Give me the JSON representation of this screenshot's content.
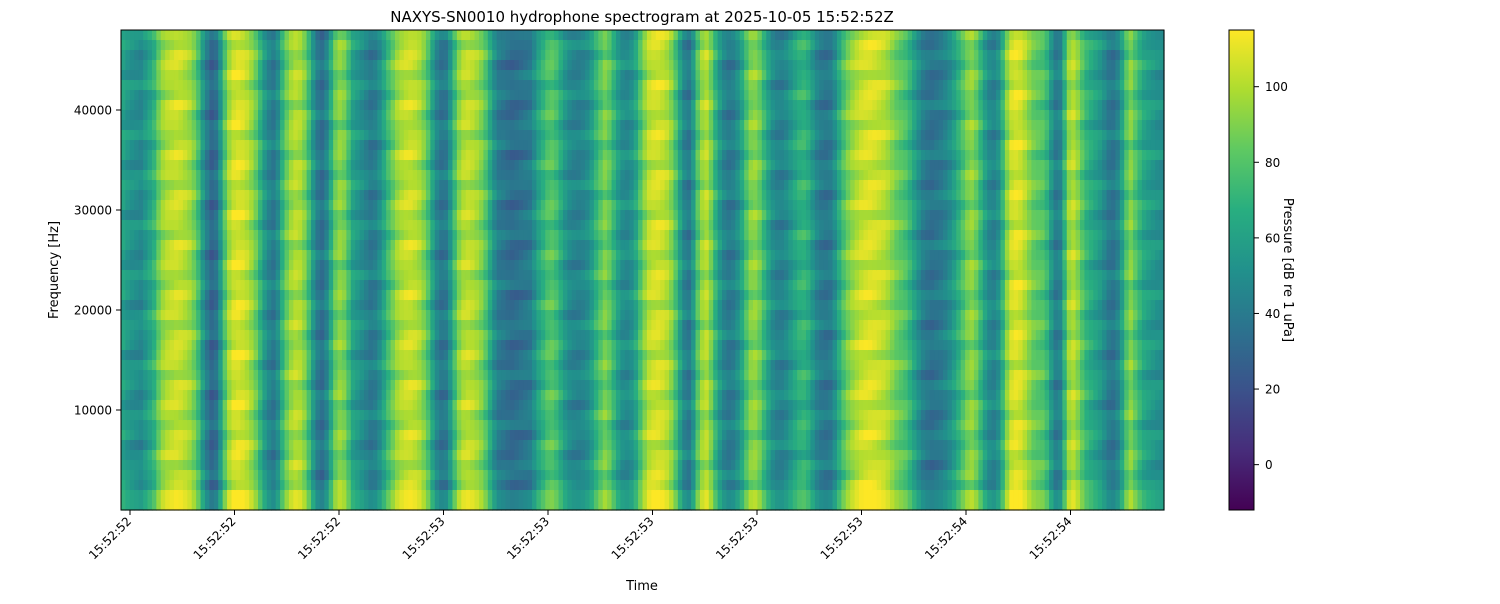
{
  "chart_data": {
    "type": "heatmap",
    "title": "NAXYS-SN0010 hydrophone spectrogram at 2025-10-05 15:52:52Z",
    "xlabel": "Time",
    "ylabel": "Frequency [Hz]",
    "colorbar_label": "Pressure [dB re 1 uPa]",
    "colormap": "viridis",
    "ylim": [
      0,
      48000
    ],
    "clim": [
      -12,
      115
    ],
    "x_tick_labels": [
      "15:52:52",
      "15:52:52",
      "15:52:52",
      "15:52:53",
      "15:52:53",
      "15:52:53",
      "15:52:53",
      "15:52:53",
      "15:52:54",
      "15:52:54"
    ],
    "y_ticks": [
      10000,
      20000,
      30000,
      40000
    ],
    "colorbar_ticks": [
      0,
      20,
      40,
      60,
      80,
      100
    ],
    "column_levels": [
      60,
      55,
      52,
      50,
      48,
      55,
      62,
      70,
      85,
      95,
      100,
      102,
      104,
      103,
      100,
      96,
      88,
      75,
      55,
      40,
      30,
      35,
      55,
      80,
      98,
      106,
      108,
      106,
      102,
      95,
      85,
      70,
      55,
      45,
      40,
      50,
      70,
      85,
      95,
      100,
      98,
      90,
      75,
      55,
      40,
      35,
      45,
      65,
      85,
      92,
      88,
      75,
      60,
      55,
      50,
      45,
      40,
      42,
      50,
      62,
      75,
      85,
      95,
      100,
      103,
      104,
      102,
      98,
      90,
      78,
      60,
      45,
      38,
      40,
      55,
      75,
      92,
      100,
      102,
      100,
      96,
      90,
      80,
      65,
      50,
      40,
      38,
      35,
      33,
      34,
      36,
      38,
      40,
      50,
      62,
      70,
      78,
      80,
      75,
      65,
      55,
      48,
      45,
      44,
      46,
      50,
      58,
      70,
      80,
      88,
      82,
      70,
      58,
      50,
      48,
      52,
      62,
      78,
      92,
      102,
      105,
      106,
      104,
      100,
      92,
      78,
      60,
      45,
      40,
      55,
      80,
      95,
      100,
      88,
      70,
      55,
      45,
      40,
      42,
      50,
      62,
      78,
      90,
      92,
      85,
      72,
      60,
      50,
      45,
      44,
      48,
      55,
      62,
      68,
      70,
      65,
      55,
      45,
      40,
      38,
      40,
      50,
      65,
      78,
      88,
      95,
      100,
      104,
      106,
      107,
      106,
      104,
      102,
      98,
      92,
      86,
      82,
      78,
      70,
      60,
      50,
      42,
      38,
      36,
      38,
      40,
      44,
      50,
      58,
      68,
      78,
      88,
      92,
      85,
      72,
      58,
      48,
      45,
      52,
      70,
      92,
      105,
      108,
      106,
      100,
      92,
      85,
      82,
      80,
      72,
      55,
      42,
      45,
      70,
      95,
      100,
      92,
      80,
      70,
      65,
      60,
      55,
      48,
      40,
      38,
      45,
      60,
      80,
      90,
      80,
      70,
      62,
      58,
      55,
      52,
      50
    ]
  }
}
